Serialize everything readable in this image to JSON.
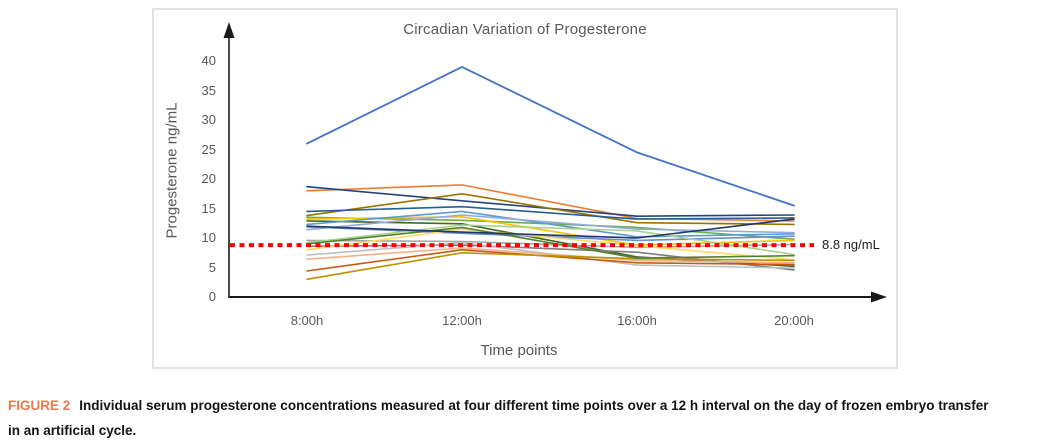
{
  "figure": {
    "caption_label": "FIGURE 2",
    "caption_text": "Individual serum progesterone concentrations measured at four different time points over a 12 h interval on the day of frozen embryo transfer in an artificial cycle.",
    "caption_label_color": "#f0774a"
  },
  "chart_data": {
    "type": "line",
    "title": "Circadian Variation of Progesterone",
    "xlabel": "Time points",
    "ylabel": "Progesterone ng/mL",
    "categories": [
      "8:00h",
      "12:00h",
      "16:00h",
      "20:00h"
    ],
    "y_ticks": [
      0,
      5,
      10,
      15,
      20,
      25,
      30,
      35,
      40
    ],
    "ylim": [
      0,
      43
    ],
    "grid": false,
    "legend": "none",
    "axis_color": "#1a1a1a",
    "threshold": {
      "value": 8.8,
      "label": "8.8 ng/mL",
      "color": "#ff0000",
      "style": "dotted"
    },
    "series": [
      {
        "color": "#4472C4",
        "values": [
          26.0,
          39.0,
          24.5,
          15.5
        ]
      },
      {
        "color": "#ED7D31",
        "values": [
          18.0,
          19.0,
          13.3,
          12.9
        ]
      },
      {
        "color": "#264478",
        "values": [
          18.7,
          16.3,
          13.7,
          13.9
        ]
      },
      {
        "color": "#997300",
        "values": [
          13.8,
          17.5,
          12.6,
          12.3
        ]
      },
      {
        "color": "#255E91",
        "values": [
          14.5,
          15.3,
          13.2,
          13.4
        ]
      },
      {
        "color": "#70AD47",
        "values": [
          13.5,
          13.0,
          11.8,
          9.8
        ]
      },
      {
        "color": "#43682B",
        "values": [
          12.9,
          12.4,
          6.8,
          5.2
        ]
      },
      {
        "color": "#FFC000",
        "values": [
          13.2,
          13.6,
          8.8,
          9.6
        ]
      },
      {
        "color": "#5B9BD5",
        "values": [
          12.3,
          14.5,
          10.2,
          10.7
        ]
      },
      {
        "color": "#698ED0",
        "values": [
          11.9,
          10.8,
          9.6,
          10.3
        ]
      },
      {
        "color": "#8FAADC",
        "values": [
          11.4,
          13.9,
          11.5,
          10.9
        ]
      },
      {
        "color": "#A5A5A5",
        "values": [
          9.6,
          9.4,
          8.4,
          8.9
        ]
      },
      {
        "color": "#A9D18E",
        "values": [
          9.2,
          12.2,
          11.2,
          7.2
        ]
      },
      {
        "color": "#7F7F7F",
        "values": [
          8.6,
          8.8,
          7.6,
          4.6
        ]
      },
      {
        "color": "#FFD966",
        "values": [
          8.0,
          11.5,
          8.7,
          6.3
        ]
      },
      {
        "color": "#BFBFBF",
        "values": [
          7.1,
          9.2,
          5.4,
          4.9
        ]
      },
      {
        "color": "#F4B183",
        "values": [
          6.4,
          8.3,
          6.2,
          5.8
        ]
      },
      {
        "color": "#C55A11",
        "values": [
          4.4,
          8.0,
          5.8,
          5.5
        ]
      },
      {
        "color": "#BF9000",
        "values": [
          3.0,
          7.5,
          6.5,
          6.2
        ]
      },
      {
        "color": "#548235",
        "values": [
          9.0,
          11.8,
          6.6,
          7.0
        ]
      },
      {
        "color": "#203864",
        "values": [
          12.0,
          11.0,
          10.0,
          13.2
        ]
      }
    ]
  }
}
